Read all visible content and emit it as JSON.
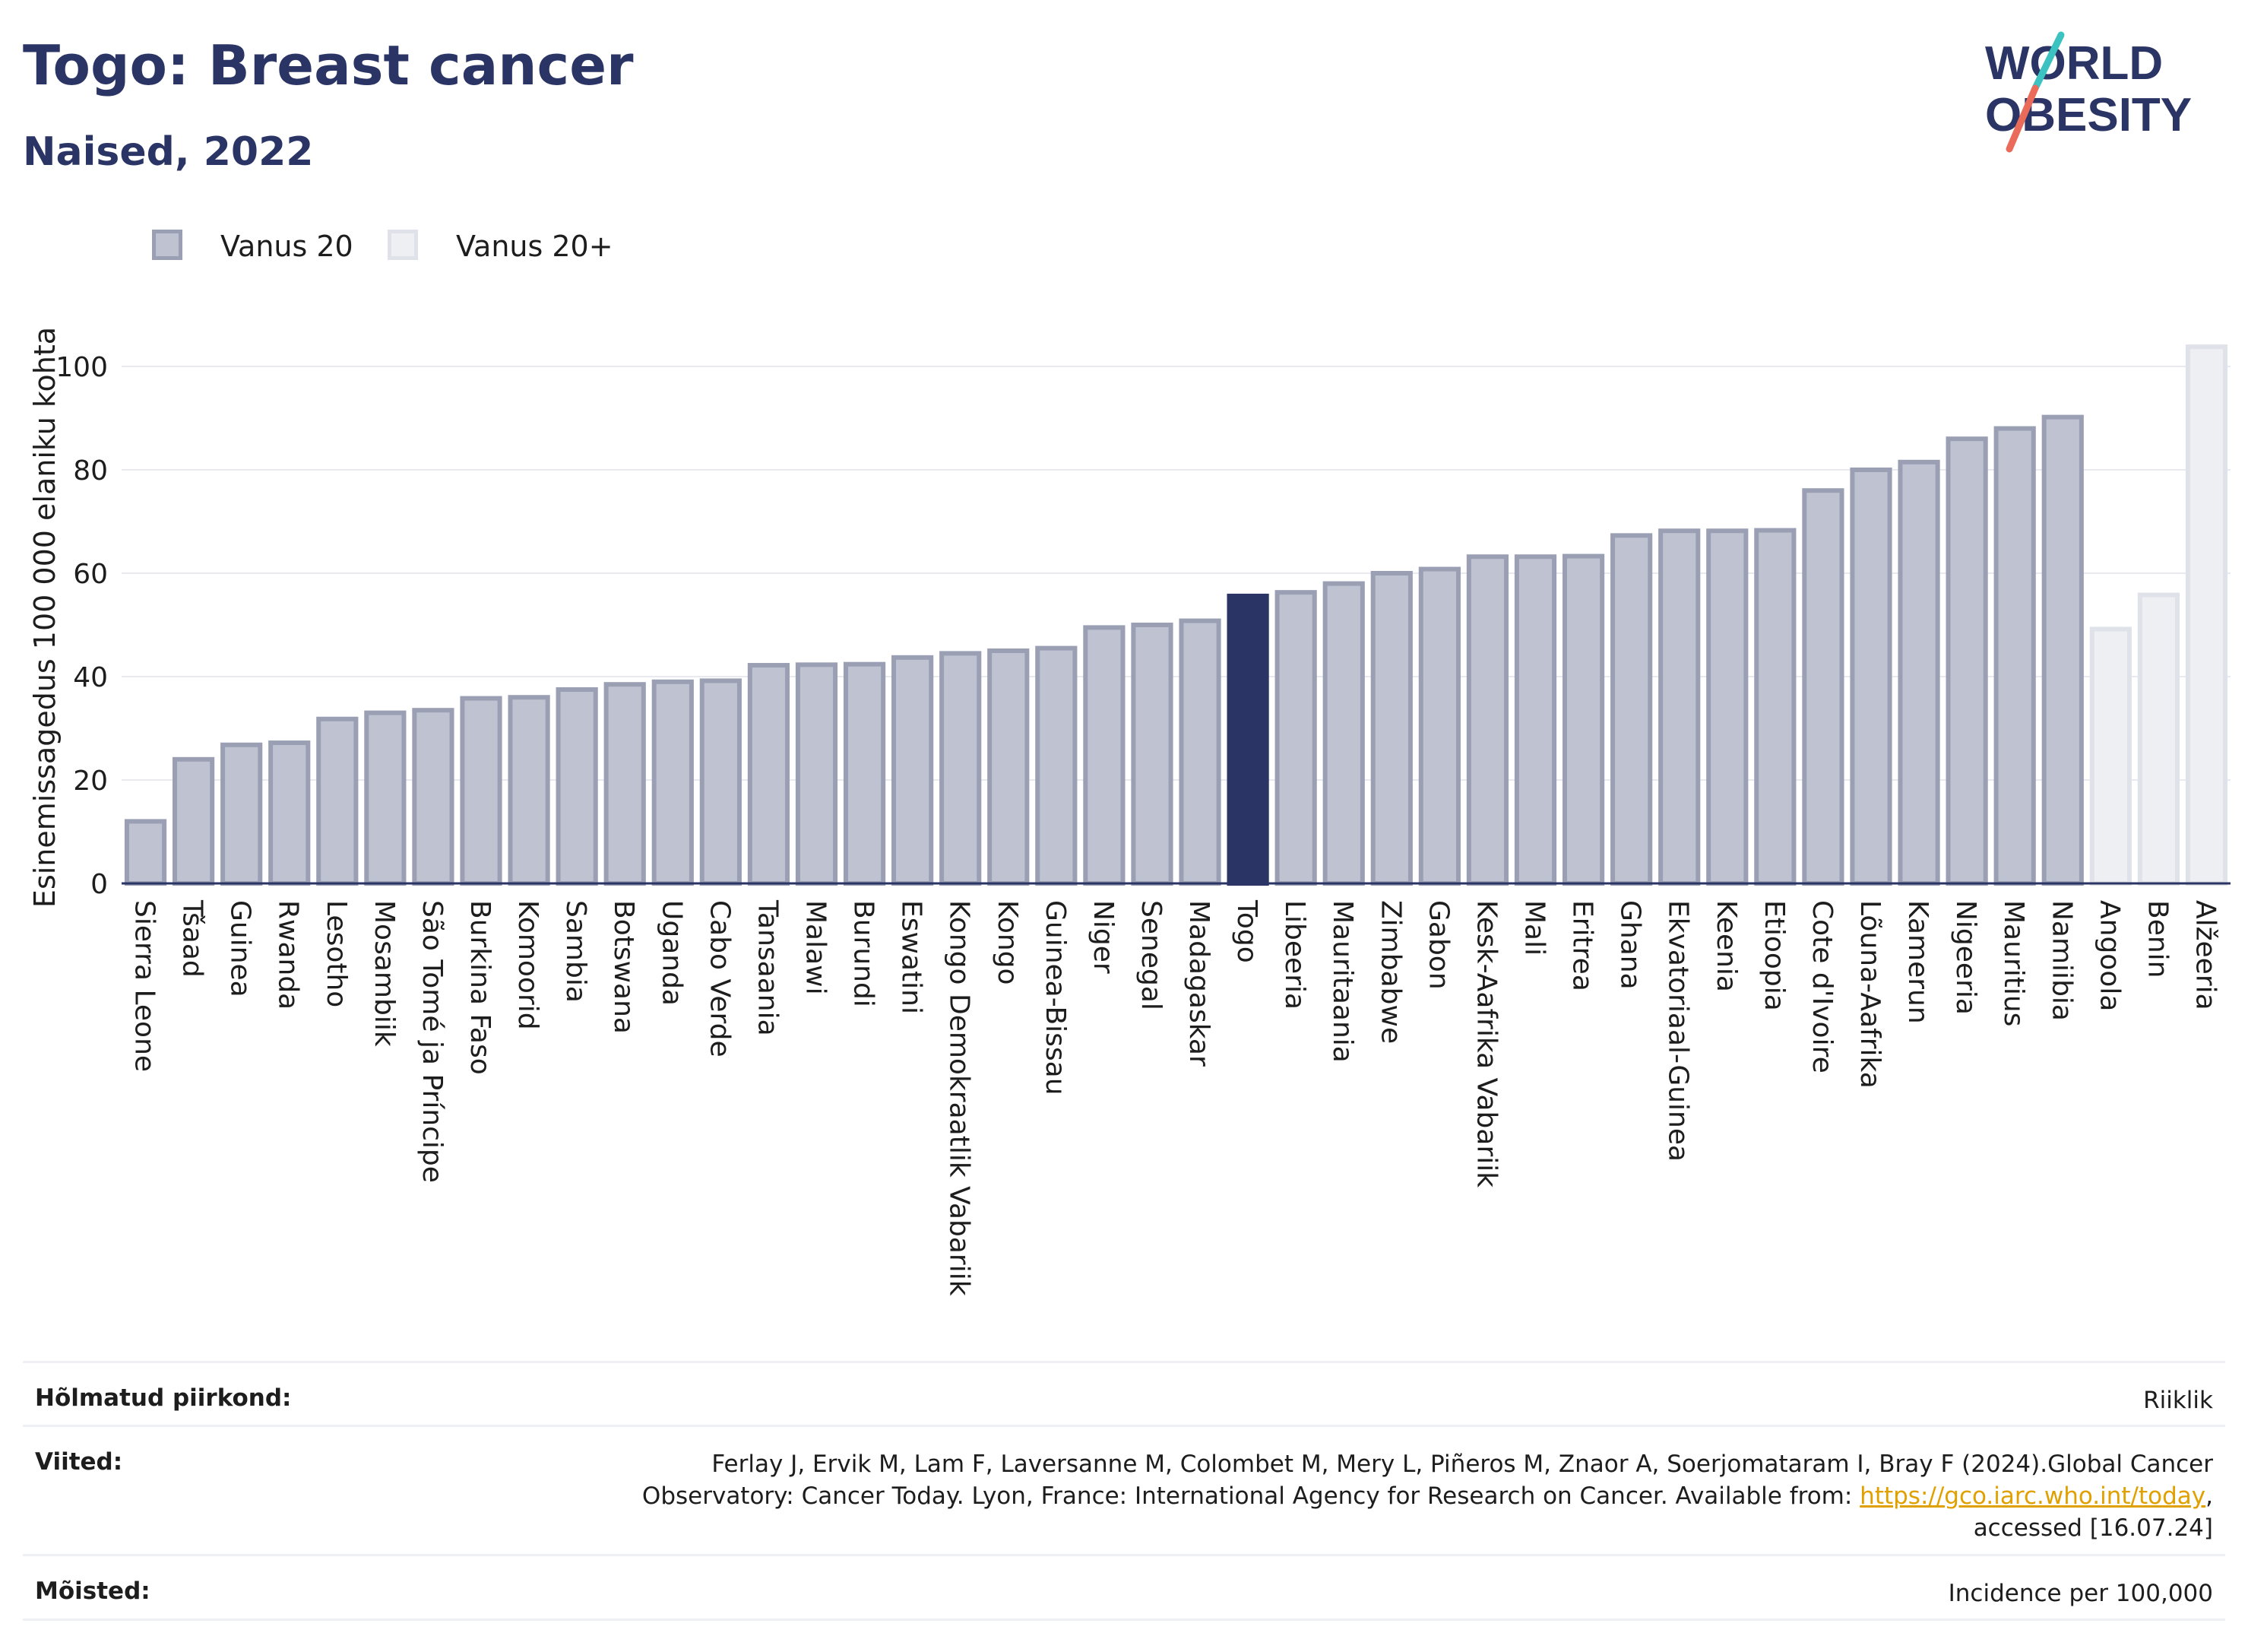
{
  "header": {
    "title": "Togo: Breast cancer",
    "subtitle": "Naised, 2022",
    "logo_text_top": "WORLD",
    "logo_text_bottom": "OBESITY"
  },
  "legend": [
    {
      "label": "Vanus 20",
      "color": "#bfc3d1",
      "border": "#9a9fb4"
    },
    {
      "label": "Vanus 20+",
      "color": "#eeeff3",
      "border": "#e0e2e9"
    }
  ],
  "chart_data": {
    "type": "bar",
    "ylabel": "Esinemissagedus 100 000 elaniku kohta",
    "ylim": [
      0,
      110
    ],
    "yticks": [
      0,
      20,
      40,
      60,
      80,
      100
    ],
    "grid": true,
    "legend_position": "top-left",
    "categories": [
      "Sierra Leone",
      "Tšaad",
      "Guinea",
      "Rwanda",
      "Lesotho",
      "Mosambiik",
      "São Tomé ja Príncipe",
      "Burkina Faso",
      "Komoorid",
      "Sambia",
      "Botswana",
      "Uganda",
      "Cabo Verde",
      "Tansaania",
      "Malawi",
      "Burundi",
      "Eswatini",
      "Kongo Demokraatlik Vabariik",
      "Kongo",
      "Guinea-Bissau",
      "Niger",
      "Senegal",
      "Madagaskar",
      "Togo",
      "Libeeria",
      "Mauritaania",
      "Zimbabwe",
      "Gabon",
      "Kesk-Aafrika Vabariik",
      "Mali",
      "Eritrea",
      "Ghana",
      "Ekvatoriaal-Guinea",
      "Keenia",
      "Etioopia",
      "Cote d'Ivoire",
      "Lõuna-Aafrika",
      "Kamerun",
      "Nigeeria",
      "Mauritius",
      "Namiibia",
      "Angoola",
      "Benin",
      "Alžeeria"
    ],
    "values": [
      12,
      24,
      26.8,
      27.2,
      31.8,
      33,
      33.5,
      35.8,
      36,
      37.5,
      38.5,
      39,
      39.2,
      42.2,
      42.3,
      42.4,
      43.7,
      44.5,
      45,
      45.5,
      49.5,
      50,
      50.8,
      55.6,
      56.3,
      58,
      60,
      60.8,
      63.2,
      63.2,
      63.3,
      67.3,
      68.2,
      68.2,
      68.3,
      76,
      80,
      81.5,
      86,
      88,
      90.2,
      49.2,
      55.8,
      103.8
    ],
    "series_index": [
      0,
      0,
      0,
      0,
      0,
      0,
      0,
      0,
      0,
      0,
      0,
      0,
      0,
      0,
      0,
      0,
      0,
      0,
      0,
      0,
      0,
      0,
      0,
      0,
      0,
      0,
      0,
      0,
      0,
      0,
      0,
      0,
      0,
      0,
      0,
      0,
      0,
      0,
      0,
      0,
      0,
      1,
      1,
      1
    ],
    "highlight": "Togo",
    "colors": {
      "series0_fill": "#bfc3d1",
      "series0_border": "#9a9fb4",
      "series1_fill": "#eeeff3",
      "series1_border": "#e0e2e9",
      "highlight": "#2b3565",
      "grid": "#e8eaf0",
      "axis": "#2b3565"
    }
  },
  "info": {
    "rows": [
      {
        "label": "Hõlmatud piirkond:",
        "value": "Riiklik"
      },
      {
        "label": "Viited:",
        "value_line1": "Ferlay J, Ervik M, Lam F, Laversanne M, Colombet M, Mery L, Piñeros M, Znaor A, Soerjomataram I, Bray F (2024).Global Cancer",
        "value_line2": "Observatory: Cancer Today. Lyon, France: International Agency for Research on Cancer. Available from: ",
        "link": "https://gco.iarc.who.int/today",
        "value_line2_tail": ",",
        "value_line3": "accessed [16.07.24]"
      },
      {
        "label": "Mõisted:",
        "value": "Incidence per 100,000"
      }
    ]
  }
}
